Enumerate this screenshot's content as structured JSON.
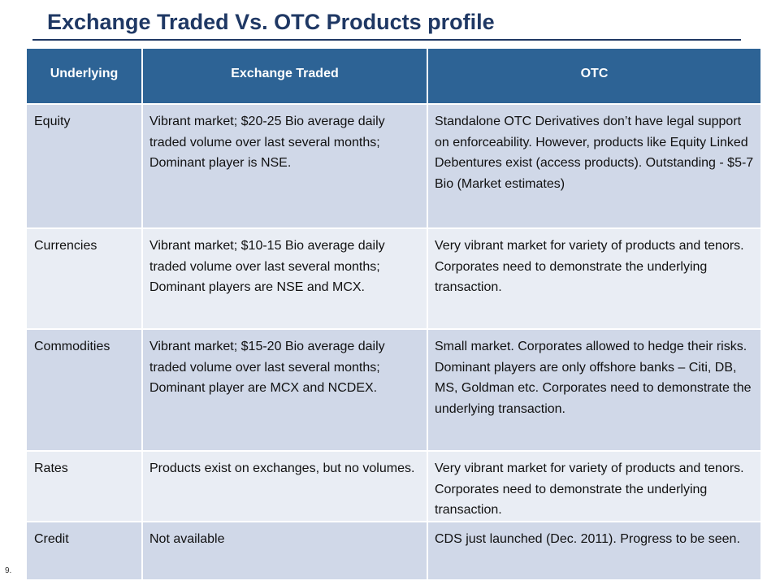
{
  "title": "Exchange Traded Vs. OTC Products profile",
  "table": {
    "headers": [
      "Underlying",
      "Exchange Traded",
      "OTC"
    ],
    "rows": [
      {
        "underlying": "Equity",
        "exchange_traded": "Vibrant market; $20-25 Bio average daily traded volume over last several months; Dominant player is NSE.",
        "otc": "Standalone OTC Derivatives don’t have legal support on enforceability. However, products like Equity Linked Debentures exist (access products). Outstanding - $5-7 Bio (Market estimates)"
      },
      {
        "underlying": "Currencies",
        "exchange_traded": "Vibrant market; $10-15 Bio average daily traded volume over last several months; Dominant players are NSE and MCX.",
        "otc": "Very vibrant market for variety of products and tenors. Corporates need to demonstrate the underlying transaction."
      },
      {
        "underlying": "Commodities",
        "exchange_traded": "Vibrant market; $15-20 Bio average daily traded volume over last several months; Dominant player are MCX and NCDEX.",
        "otc": "Small market. Corporates allowed to hedge their risks. Dominant players are only offshore banks – Citi, DB, MS, Goldman etc. Corporates need to demonstrate the underlying transaction."
      },
      {
        "underlying": "Rates",
        "exchange_traded": "Products exist on exchanges, but no volumes.",
        "otc": "Very vibrant market for variety of products and tenors. Corporates need to demonstrate the underlying transaction."
      },
      {
        "underlying": "Credit",
        "exchange_traded": "Not available",
        "otc": "CDS just launched (Dec. 2011). Progress to be seen."
      }
    ]
  },
  "page_number": "9.",
  "colors": {
    "title": "#1f3864",
    "header_bg": "#2d6395",
    "row_dark": "#d0d8e8",
    "row_light": "#e9edf4"
  }
}
